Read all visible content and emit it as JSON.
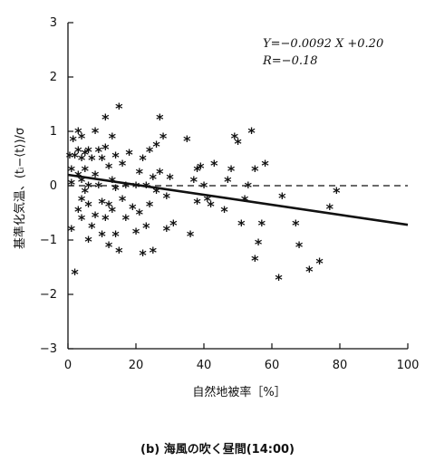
{
  "chart_data": {
    "type": "scatter",
    "xlabel": "自然地被率［%］",
    "ylabel": "基準化気温、(tᵢ−⟨t⟩)/σ",
    "xlim": [
      0,
      100
    ],
    "ylim": [
      -3,
      3
    ],
    "xticks": [
      0,
      20,
      40,
      60,
      80,
      100
    ],
    "yticks": [
      3,
      2,
      1,
      0,
      -1,
      -2,
      -3
    ],
    "equation_line1": "Y=−0.0092 X +0.20",
    "equation_line2": "R=−0.18",
    "caption": "(b) 海風の吹く昼間(14:00)",
    "regression": {
      "slope": -0.0092,
      "intercept": 0.2,
      "style": "solid"
    },
    "reference_line": {
      "y": 0,
      "style": "dashed"
    },
    "marker": "*",
    "points": [
      [
        0.5,
        0.55
      ],
      [
        1,
        0.3
      ],
      [
        1,
        0.05
      ],
      [
        1,
        -0.8
      ],
      [
        1.5,
        0.85
      ],
      [
        2,
        0.55
      ],
      [
        2,
        -1.6
      ],
      [
        3,
        1.0
      ],
      [
        3,
        0.65
      ],
      [
        3,
        0.2
      ],
      [
        3,
        -0.45
      ],
      [
        4,
        0.9
      ],
      [
        4,
        0.5
      ],
      [
        4,
        0.1
      ],
      [
        4,
        -0.25
      ],
      [
        4,
        -0.6
      ],
      [
        5,
        0.6
      ],
      [
        5,
        0.3
      ],
      [
        5,
        -0.1
      ],
      [
        6,
        0.65
      ],
      [
        6,
        0.0
      ],
      [
        6,
        -0.35
      ],
      [
        6,
        -1.0
      ],
      [
        7,
        0.5
      ],
      [
        7,
        -0.75
      ],
      [
        8,
        1.0
      ],
      [
        8,
        0.2
      ],
      [
        8,
        -0.55
      ],
      [
        9,
        0.65
      ],
      [
        9,
        0.0
      ],
      [
        10,
        0.5
      ],
      [
        10,
        -0.3
      ],
      [
        10,
        -0.9
      ],
      [
        11,
        1.25
      ],
      [
        11,
        0.7
      ],
      [
        11,
        -0.6
      ],
      [
        12,
        0.35
      ],
      [
        12,
        -0.35
      ],
      [
        12,
        -1.1
      ],
      [
        13,
        0.9
      ],
      [
        13,
        0.1
      ],
      [
        13,
        -0.45
      ],
      [
        14,
        0.55
      ],
      [
        14,
        -0.05
      ],
      [
        14,
        -0.9
      ],
      [
        15,
        1.45
      ],
      [
        15,
        -1.2
      ],
      [
        16,
        0.4
      ],
      [
        16,
        -0.25
      ],
      [
        17,
        0.0
      ],
      [
        17,
        -0.6
      ],
      [
        18,
        0.6
      ],
      [
        19,
        -0.4
      ],
      [
        20,
        0.0
      ],
      [
        20,
        -0.85
      ],
      [
        21,
        0.25
      ],
      [
        21,
        -0.5
      ],
      [
        22,
        0.5
      ],
      [
        22,
        -1.25
      ],
      [
        23,
        0.0
      ],
      [
        23,
        -0.75
      ],
      [
        24,
        0.65
      ],
      [
        24,
        -0.35
      ],
      [
        25,
        0.15
      ],
      [
        25,
        -1.2
      ],
      [
        26,
        -0.1
      ],
      [
        26,
        0.75
      ],
      [
        27,
        1.25
      ],
      [
        27,
        0.25
      ],
      [
        28,
        0.9
      ],
      [
        29,
        -0.2
      ],
      [
        29,
        -0.8
      ],
      [
        30,
        0.15
      ],
      [
        31,
        -0.7
      ],
      [
        35,
        0.85
      ],
      [
        36,
        -0.9
      ],
      [
        37,
        0.1
      ],
      [
        38,
        0.3
      ],
      [
        38,
        -0.3
      ],
      [
        39,
        0.35
      ],
      [
        40,
        0.0
      ],
      [
        41,
        -0.25
      ],
      [
        42,
        -0.35
      ],
      [
        43,
        0.4
      ],
      [
        46,
        -0.45
      ],
      [
        47,
        0.1
      ],
      [
        48,
        0.3
      ],
      [
        49,
        0.9
      ],
      [
        50,
        0.8
      ],
      [
        51,
        -0.7
      ],
      [
        52,
        -0.25
      ],
      [
        53,
        0.0
      ],
      [
        54,
        1.0
      ],
      [
        55,
        -1.35
      ],
      [
        55,
        0.3
      ],
      [
        56,
        -1.05
      ],
      [
        57,
        -0.7
      ],
      [
        58,
        0.4
      ],
      [
        62,
        -1.7
      ],
      [
        63,
        -0.2
      ],
      [
        67,
        -0.7
      ],
      [
        68,
        -1.1
      ],
      [
        71,
        -1.55
      ],
      [
        74,
        -1.4
      ],
      [
        77,
        -0.4
      ],
      [
        79,
        -0.1
      ]
    ]
  }
}
